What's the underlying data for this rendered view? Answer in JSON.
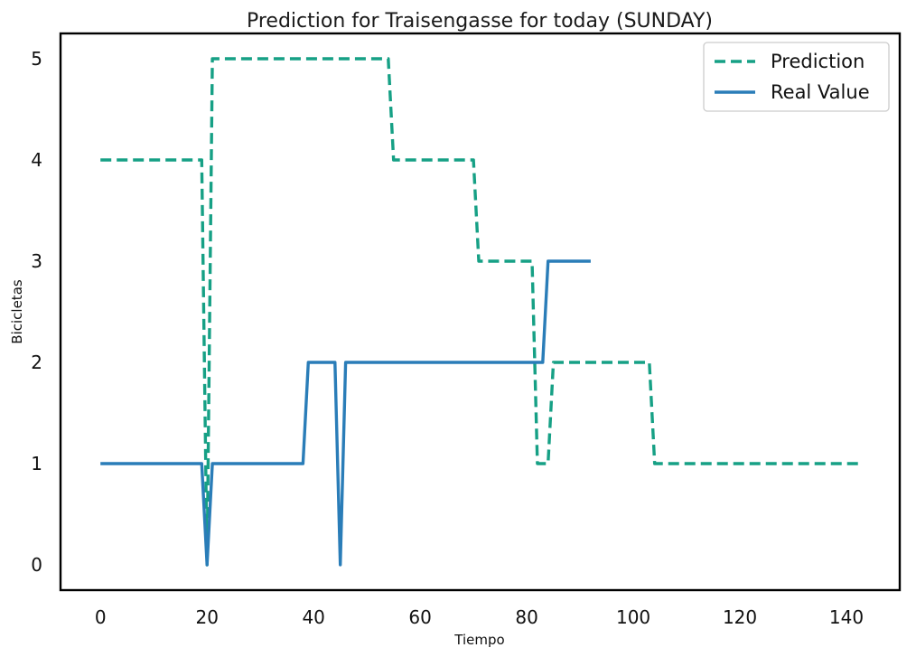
{
  "chart_data": {
    "type": "line",
    "title": "Prediction for Traisengasse for today (SUNDAY)",
    "xlabel": "Tiempo",
    "ylabel": "Bicicletas",
    "xlim": [
      -7.5,
      150
    ],
    "ylim": [
      -0.25,
      5.25
    ],
    "xticks": [
      0,
      20,
      40,
      60,
      80,
      100,
      120,
      140
    ],
    "yticks": [
      0,
      1,
      2,
      3,
      4,
      5
    ],
    "grid": false,
    "legend_position": "top-right",
    "series": [
      {
        "name": "Prediction",
        "color": "#16a085",
        "style": "dashed",
        "x": [
          0,
          19,
          20,
          21,
          54,
          55,
          70,
          71,
          81,
          82,
          84,
          85,
          103,
          104,
          143
        ],
        "y": [
          4,
          4,
          0,
          5,
          5,
          4,
          4,
          3,
          3,
          1,
          1,
          2,
          2,
          1,
          1
        ]
      },
      {
        "name": "Real Value",
        "color": "#2a7db8",
        "style": "solid",
        "x": [
          0,
          19,
          20,
          21,
          38,
          39,
          44,
          45,
          46,
          83,
          84,
          92
        ],
        "y": [
          1,
          1,
          0,
          1,
          1,
          2,
          2,
          0,
          2,
          2,
          3,
          3
        ]
      }
    ]
  }
}
